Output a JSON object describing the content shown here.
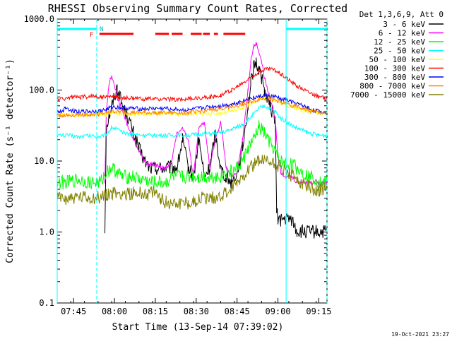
{
  "chart_data": {
    "type": "line",
    "title": "RHESSI Observing Summary Count Rates, Corrected",
    "xlabel": "Start Time (13-Sep-14 07:39:02)",
    "ylabel": "Corrected Count Rate (s⁻¹ detector⁻¹)",
    "ylim": [
      0.1,
      1000
    ],
    "yscale": "log",
    "xlim_minutes": [
      0,
      99
    ],
    "x_ticks": [
      {
        "t": 6,
        "label": "07:45"
      },
      {
        "t": 21,
        "label": "08:00"
      },
      {
        "t": 36,
        "label": "08:15"
      },
      {
        "t": 51,
        "label": "08:30"
      },
      {
        "t": 66,
        "label": "08:45"
      },
      {
        "t": 81,
        "label": "09:00"
      },
      {
        "t": 96,
        "label": "09:15"
      }
    ],
    "y_ticks": [
      {
        "v": 1000,
        "label": "1000.0"
      },
      {
        "v": 100,
        "label": "100.0"
      },
      {
        "v": 10,
        "label": "10.0"
      },
      {
        "v": 1,
        "label": "1.0"
      },
      {
        "v": 0.1,
        "label": "0.1"
      }
    ],
    "legend_header": "Det 1,3,6,9, Att 0",
    "legend_placement": "top-right outside",
    "series": [
      {
        "name": "3 - 6 keV",
        "color": "#000000",
        "x": [
          0,
          0.5,
          17,
          17.5,
          18,
          20,
          22,
          24,
          26,
          28,
          30,
          32,
          34,
          36,
          38,
          40,
          44,
          46,
          48,
          50,
          52,
          54,
          56,
          58,
          60,
          62,
          64,
          66,
          68,
          70,
          71,
          72,
          73,
          74,
          75,
          76,
          78,
          80,
          80.5,
          81,
          82,
          84,
          86,
          88,
          90,
          92,
          94,
          96,
          99
        ],
        "y": [
          1,
          null,
          null,
          1,
          30,
          60,
          110,
          60,
          40,
          25,
          15,
          10,
          8,
          8,
          8,
          8,
          8,
          20,
          8,
          6,
          20,
          6,
          8,
          25,
          8,
          6,
          5,
          7,
          15,
          60,
          120,
          200,
          240,
          200,
          150,
          100,
          60,
          40,
          2,
          1.5,
          1.5,
          1.5,
          1.5,
          1,
          1,
          1,
          1,
          1,
          1
        ]
      },
      {
        "name": "6 - 12 keV",
        "color": "#ff00ff",
        "x": [
          0,
          17,
          17.5,
          18,
          19,
          20,
          21,
          22,
          24,
          26,
          28,
          30,
          32,
          34,
          36,
          38,
          40,
          42,
          44,
          46,
          48,
          50,
          52,
          54,
          56,
          58,
          60,
          62,
          64,
          66,
          68,
          70,
          71,
          72,
          73,
          74,
          75,
          76,
          78,
          80,
          81,
          82,
          84,
          86,
          88,
          90,
          92,
          94,
          96,
          99
        ],
        "y": [
          null,
          null,
          5,
          50,
          120,
          160,
          120,
          80,
          50,
          30,
          20,
          14,
          10,
          9,
          9,
          8,
          8,
          10,
          25,
          30,
          20,
          6,
          30,
          35,
          8,
          20,
          35,
          8,
          6,
          7,
          20,
          100,
          250,
          400,
          450,
          350,
          250,
          150,
          80,
          40,
          12,
          7,
          6,
          6,
          5,
          5,
          5,
          5,
          5,
          5
        ]
      },
      {
        "name": "12 - 25 keV",
        "color": "#00ff00",
        "x": [
          0,
          4,
          8,
          12,
          16,
          17,
          18,
          20,
          22,
          24,
          26,
          28,
          30,
          32,
          34,
          36,
          38,
          40,
          42,
          44,
          46,
          48,
          50,
          52,
          54,
          56,
          58,
          60,
          62,
          64,
          66,
          68,
          70,
          72,
          74,
          76,
          78,
          80,
          81,
          82,
          84,
          86,
          88,
          90,
          92,
          94,
          96,
          99
        ],
        "y": [
          5,
          5,
          5.5,
          5,
          5,
          6,
          7,
          8,
          7,
          6,
          6,
          6,
          5.5,
          5.5,
          5,
          5,
          5,
          5,
          6,
          6,
          6,
          6,
          6,
          6,
          6,
          6,
          6,
          6,
          7,
          7,
          8,
          10,
          15,
          20,
          30,
          25,
          18,
          14,
          11,
          10,
          9,
          9,
          8,
          7,
          6,
          6,
          5,
          5
        ]
      },
      {
        "name": "25 - 50 keV",
        "color": "#00ffff",
        "x": [
          0,
          4,
          8,
          12,
          16,
          18,
          20,
          22,
          24,
          28,
          32,
          36,
          40,
          44,
          48,
          52,
          56,
          60,
          62,
          64,
          66,
          68,
          70,
          72,
          74,
          76,
          78,
          80,
          81,
          82,
          84,
          86,
          88,
          90,
          92,
          94,
          96,
          99
        ],
        "y": [
          23,
          23,
          22,
          23,
          22,
          24,
          30,
          28,
          25,
          24,
          23,
          23,
          23,
          23,
          23,
          24,
          24,
          25,
          26,
          28,
          30,
          33,
          38,
          45,
          55,
          60,
          55,
          50,
          45,
          40,
          36,
          32,
          29,
          27,
          25,
          24,
          23,
          23
        ]
      },
      {
        "name": "50 - 100 keV",
        "color": "#ffff00",
        "x": [
          0,
          10,
          18,
          20,
          22,
          30,
          40,
          50,
          60,
          64,
          68,
          70,
          72,
          74,
          76,
          78,
          80,
          82,
          84,
          86,
          88,
          90,
          92,
          96,
          99
        ],
        "y": [
          45,
          45,
          46,
          48,
          47,
          46,
          46,
          46,
          47,
          50,
          55,
          60,
          68,
          75,
          80,
          78,
          72,
          66,
          62,
          58,
          55,
          52,
          50,
          48,
          47
        ]
      },
      {
        "name": "100 - 300 keV",
        "color": "#ff0000",
        "x": [
          0,
          2,
          4,
          6,
          8,
          10,
          12,
          14,
          16,
          18,
          20,
          22,
          24,
          28,
          32,
          36,
          40,
          44,
          48,
          52,
          56,
          60,
          62,
          64,
          66,
          68,
          70,
          72,
          74,
          76,
          78,
          80,
          82,
          84,
          86,
          88,
          90,
          92,
          94,
          96,
          99
        ],
        "y": [
          75,
          75,
          78,
          80,
          78,
          80,
          82,
          82,
          80,
          80,
          80,
          80,
          78,
          76,
          75,
          75,
          74,
          74,
          75,
          77,
          80,
          85,
          92,
          100,
          110,
          125,
          140,
          160,
          180,
          195,
          200,
          190,
          170,
          150,
          130,
          115,
          105,
          95,
          88,
          80,
          75
        ]
      },
      {
        "name": "300 - 800 keV",
        "color": "#0000ff",
        "x": [
          0,
          2,
          3,
          5,
          8,
          12,
          16,
          18,
          20,
          22,
          24,
          28,
          32,
          36,
          40,
          44,
          48,
          52,
          56,
          60,
          64,
          66,
          68,
          70,
          72,
          74,
          76,
          78,
          80,
          82,
          84,
          86,
          88,
          90,
          92,
          94,
          96,
          99
        ],
        "y": [
          50,
          50,
          58,
          52,
          50,
          50,
          51,
          53,
          58,
          57,
          56,
          55,
          54,
          55,
          55,
          53,
          52,
          55,
          58,
          60,
          63,
          66,
          70,
          74,
          78,
          81,
          83,
          82,
          80,
          76,
          72,
          68,
          64,
          60,
          56,
          52,
          50,
          48
        ]
      },
      {
        "name": "800 - 7000 keV",
        "color": "#ff8000",
        "x": [
          0,
          4,
          8,
          12,
          16,
          18,
          20,
          22,
          24,
          28,
          32,
          36,
          40,
          44,
          48,
          52,
          56,
          60,
          64,
          66,
          68,
          70,
          72,
          74,
          76,
          78,
          80,
          82,
          84,
          86,
          88,
          90,
          92,
          94,
          96,
          99
        ],
        "y": [
          44,
          44,
          45,
          45,
          46,
          47,
          50,
          50,
          49,
          48,
          48,
          48,
          48,
          48,
          48,
          50,
          52,
          55,
          58,
          60,
          63,
          66,
          70,
          74,
          76,
          75,
          72,
          68,
          64,
          61,
          58,
          55,
          52,
          50,
          48,
          47
        ]
      },
      {
        "name": "7000 - 15000 keV",
        "color": "#808000",
        "x": [
          0,
          4,
          8,
          12,
          16,
          18,
          20,
          24,
          28,
          32,
          34,
          36,
          38,
          40,
          44,
          48,
          50,
          52,
          56,
          60,
          64,
          66,
          68,
          70,
          72,
          74,
          76,
          78,
          80,
          82,
          84,
          86,
          88,
          90,
          92,
          94,
          96,
          99
        ],
        "y": [
          3,
          3,
          3,
          3,
          3,
          3.5,
          3.5,
          3.5,
          3.5,
          3.5,
          3.5,
          3.5,
          3,
          2.6,
          2.6,
          2.6,
          2.6,
          3,
          3,
          3.2,
          4,
          5,
          6,
          8,
          9,
          10,
          10,
          9.5,
          9,
          8,
          7,
          6,
          5.5,
          5,
          4.5,
          4,
          4,
          4
        ]
      }
    ],
    "flags": {
      "attenuator_bars": [
        [
          0,
          14.5
        ],
        [
          84,
          99
        ]
      ],
      "cyan_verticals": [
        0,
        14.5,
        84,
        99
      ],
      "n_label": "N",
      "f_label": "F",
      "flare_bars": [
        [
          15.5,
          28
        ],
        [
          36,
          41
        ],
        [
          42,
          46
        ],
        [
          49,
          53
        ],
        [
          53.5,
          56
        ],
        [
          57.5,
          59
        ],
        [
          61,
          69
        ]
      ]
    }
  },
  "footer": {
    "timestamp": "19-Oct-2021 23:27"
  }
}
